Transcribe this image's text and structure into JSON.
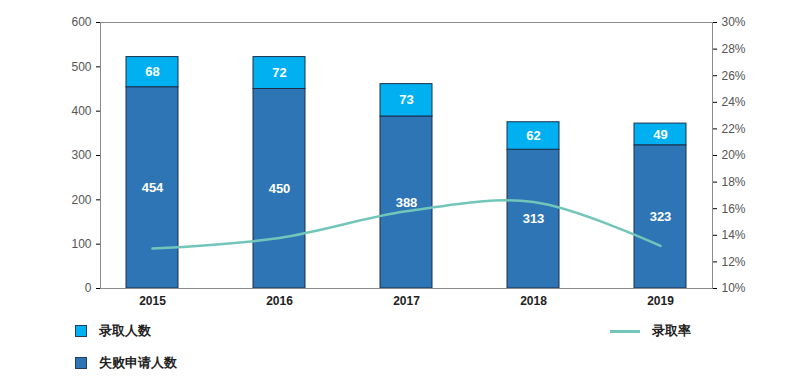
{
  "chart_data": {
    "type": "bar",
    "stacked": true,
    "grid": false,
    "legend": "bottom",
    "categories": [
      "2015",
      "2016",
      "2017",
      "2018",
      "2019"
    ],
    "series": [
      {
        "name": "录取人数",
        "color": "#00B0F0",
        "values": [
          68,
          72,
          73,
          62,
          49
        ],
        "data_labels": true
      },
      {
        "name": "失败申请人数",
        "color": "#2E75B6",
        "values": [
          454,
          450,
          388,
          313,
          323
        ],
        "data_labels": true
      },
      {
        "name": "录取率",
        "type": "line",
        "axis": "y2",
        "color": "#72C6B9",
        "line_style": "solid",
        "values": [
          13.0,
          13.8,
          15.8,
          16.5,
          13.2
        ],
        "data_labels": false
      }
    ],
    "ylim": [
      0,
      600
    ],
    "yticks": [
      0,
      100,
      200,
      300,
      400,
      500,
      600
    ],
    "y2lim": [
      10,
      30
    ],
    "y2ticks": [
      {
        "value": 10,
        "label": "10%"
      },
      {
        "value": 12,
        "label": "12%"
      },
      {
        "value": 14,
        "label": "14%"
      },
      {
        "value": 16,
        "label": "16%"
      },
      {
        "value": 18,
        "label": "18%"
      },
      {
        "value": 20,
        "label": "20%"
      },
      {
        "value": 22,
        "label": "22%"
      },
      {
        "value": 24,
        "label": "24%"
      },
      {
        "value": 26,
        "label": "26%"
      },
      {
        "value": 28,
        "label": "28%"
      },
      {
        "value": 30,
        "label": "30%"
      }
    ]
  }
}
